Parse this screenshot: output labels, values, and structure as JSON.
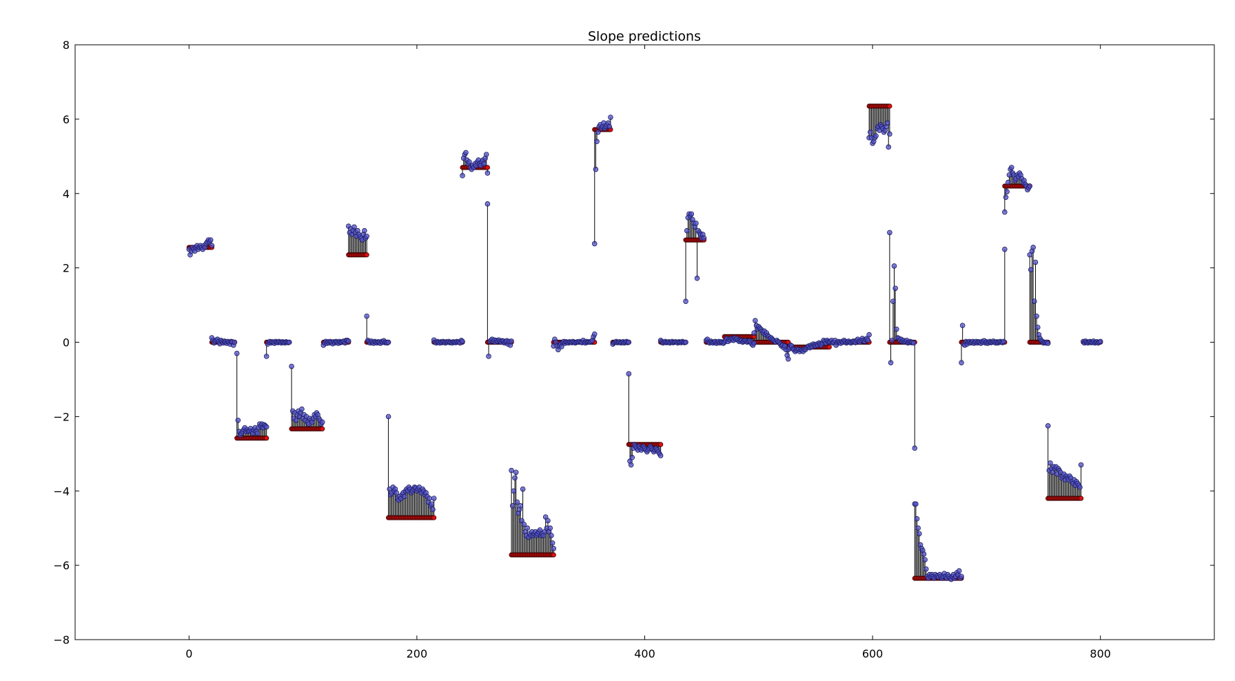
{
  "chart_data": {
    "type": "scatter",
    "title": "Slope predictions",
    "xlabel": "",
    "ylabel": "",
    "xlim": [
      -100,
      900
    ],
    "ylim": [
      -8,
      8
    ],
    "grid": false,
    "x_ticks": [
      0,
      200,
      400,
      600,
      800
    ],
    "x_tick_labels": [
      "0",
      "200",
      "400",
      "600",
      "800"
    ],
    "y_ticks": [
      8,
      6,
      4,
      2,
      0,
      -2,
      -4,
      -6,
      -8
    ],
    "y_tick_labels": [
      "8",
      "6",
      "4",
      "2",
      "0",
      "−2",
      "−4",
      "−6",
      "−8"
    ],
    "colors": {
      "true_value_marker": "#e01010",
      "prediction_marker": "#5050c8",
      "prediction_edge": "#1a1a5a",
      "residual_line": "#000000"
    },
    "segments": [
      {
        "x_start": 0,
        "x_end": 20,
        "true": 2.55,
        "pred": [
          2.5,
          2.35,
          2.45,
          2.55,
          2.5,
          2.45,
          2.55,
          2.6,
          2.5,
          2.55,
          2.6,
          2.55,
          2.5,
          2.6,
          2.55,
          2.65,
          2.7,
          2.75,
          2.7,
          2.75,
          2.6
        ]
      },
      {
        "x_start": 20,
        "x_end": 40,
        "true": 0.0,
        "pred": [
          0.12,
          0.05,
          -0.02,
          0.03,
          0.06,
          0.08,
          0.02,
          -0.04,
          0.05,
          0.02,
          -0.02,
          0.03,
          0.01,
          -0.03,
          0.02,
          0.0,
          -0.05,
          0.02,
          0.01,
          -0.08,
          0.0
        ]
      },
      {
        "x_start": 42,
        "x_end": 68,
        "true": -2.58,
        "pred": [
          -0.3,
          -2.1,
          -2.4,
          -2.5,
          -2.45,
          -2.4,
          -2.35,
          -2.3,
          -2.4,
          -2.35,
          -2.4,
          -2.38,
          -2.32,
          -2.4,
          -2.45,
          -2.36,
          -2.3,
          -2.4,
          -2.45,
          -2.3,
          -2.2,
          -2.25,
          -2.2,
          -2.3,
          -2.22,
          -2.25,
          -2.28
        ]
      },
      {
        "x_start": 68,
        "x_end": 88,
        "true": 0.0,
        "pred": [
          -0.38,
          -0.05,
          0.0,
          0.02,
          -0.02,
          0.01,
          0.0,
          -0.03,
          0.02,
          0.0,
          -0.01,
          0.02,
          0.0,
          -0.02,
          0.01,
          0.0,
          -0.02,
          0.01,
          0.0,
          -0.01,
          0.0
        ]
      },
      {
        "x_start": 90,
        "x_end": 117,
        "true": -2.33,
        "pred": [
          -0.65,
          -1.85,
          -2.05,
          -1.9,
          -2.1,
          -1.95,
          -1.85,
          -2.0,
          -1.9,
          -1.8,
          -2.05,
          -1.95,
          -2.1,
          -2.0,
          -2.15,
          -2.2,
          -2.05,
          -2.1,
          -2.15,
          -2.05,
          -1.95,
          -2.0,
          -1.9,
          -1.95,
          -2.05,
          -2.1,
          -2.2,
          -2.15
        ]
      },
      {
        "x_start": 118,
        "x_end": 140,
        "true": 0.0,
        "pred": [
          -0.08,
          -0.02,
          0.02,
          -0.03,
          0.01,
          -0.02,
          0.02,
          0.0,
          -0.04,
          0.01,
          -0.02,
          0.02,
          0.0,
          -0.03,
          0.02,
          -0.01,
          0.0,
          0.02,
          0.03,
          -0.02,
          0.05,
          0.05,
          0.03
        ]
      },
      {
        "x_start": 140,
        "x_end": 156,
        "true": 2.35,
        "pred": [
          3.12,
          2.95,
          3.05,
          2.9,
          3.0,
          3.1,
          2.95,
          2.85,
          3.0,
          2.9,
          2.85,
          2.8,
          2.75,
          2.9,
          3.0,
          2.8,
          2.85
        ]
      },
      {
        "x_start": 156,
        "x_end": 175,
        "true": 0.0,
        "pred": [
          0.7,
          0.05,
          0.02,
          -0.02,
          0.03,
          0.0,
          -0.03,
          0.02,
          0.0,
          -0.02,
          0.01,
          0.0,
          -0.03,
          0.02,
          0.0,
          0.04,
          -0.01,
          0.0,
          -0.02,
          0.0
        ]
      },
      {
        "x_start": 175,
        "x_end": 215,
        "true": -4.72,
        "pred": [
          -2.0,
          -3.95,
          -4.1,
          -4.05,
          -3.9,
          -4.0,
          -3.95,
          -4.05,
          -4.2,
          -4.25,
          -4.15,
          -4.2,
          -4.1,
          -4.05,
          -4.15,
          -4.0,
          -3.95,
          -4.0,
          -3.9,
          -3.95,
          -4.05,
          -4.0,
          -3.95,
          -3.9,
          -3.92,
          -4.0,
          -3.95,
          -3.9,
          -4.0,
          -4.05,
          -3.95,
          -4.0,
          -4.1,
          -4.05,
          -4.15,
          -4.3,
          -4.2,
          -4.4,
          -4.35,
          -4.5,
          -4.2
        ]
      },
      {
        "x_start": 215,
        "x_end": 240,
        "true": 0.0,
        "pred": [
          0.06,
          0.0,
          -0.02,
          0.02,
          0.0,
          -0.02,
          0.01,
          -0.01,
          0.02,
          0.0,
          -0.02,
          0.01,
          0.0,
          0.02,
          -0.01,
          0.0,
          -0.02,
          0.01,
          0.0,
          -0.01,
          0.02,
          0.0,
          0.01,
          -0.02,
          0.05,
          0.02
        ]
      },
      {
        "x_start": 240,
        "x_end": 262,
        "true": 4.7,
        "pred": [
          4.48,
          4.95,
          5.05,
          5.1,
          4.9,
          4.8,
          4.85,
          4.7,
          4.65,
          4.75,
          4.7,
          4.8,
          4.75,
          4.85,
          4.9,
          4.8,
          4.75,
          4.85,
          4.9,
          4.8,
          4.95,
          5.05,
          4.55
        ]
      },
      {
        "x_start": 262,
        "x_end": 283,
        "true": 0.0,
        "pred": [
          3.72,
          -0.38,
          0.02,
          0.05,
          0.08,
          0.02,
          0.06,
          0.0,
          0.05,
          0.02,
          0.06,
          0.02,
          0.0,
          0.04,
          0.03,
          -0.02,
          0.02,
          0.04,
          -0.05,
          0.02,
          -0.08,
          0.03
        ]
      },
      {
        "x_start": 283,
        "x_end": 320,
        "true": -5.72,
        "pred": [
          -3.45,
          -4.4,
          -4.0,
          -3.65,
          -3.5,
          -4.3,
          -4.6,
          -4.5,
          -4.4,
          -4.8,
          -3.95,
          -4.9,
          -5.1,
          -5.2,
          -5.0,
          -5.25,
          -5.15,
          -5.2,
          -5.1,
          -5.2,
          -5.15,
          -5.1,
          -5.2,
          -5.15,
          -5.1,
          -5.05,
          -5.2,
          -5.15,
          -5.2,
          -5.1,
          -4.7,
          -5.0,
          -4.8,
          -5.1,
          -5.0,
          -5.2,
          -5.4,
          -5.55
        ]
      },
      {
        "x_start": 320,
        "x_end": 356,
        "true": 0.0,
        "pred": [
          -0.1,
          0.08,
          0.0,
          -0.1,
          -0.2,
          -0.1,
          -0.05,
          -0.12,
          0.0,
          0.02,
          -0.03,
          0.01,
          0.0,
          -0.02,
          0.01,
          0.0,
          -0.01,
          0.02,
          0.0,
          -0.02,
          0.0,
          0.01,
          0.0,
          0.02,
          0.0,
          -0.01,
          0.05,
          0.0,
          -0.02,
          0.02,
          0.0,
          0.01,
          0.0,
          0.02,
          0.05,
          0.15,
          0.22
        ]
      },
      {
        "x_start": 356,
        "x_end": 370,
        "true": 5.72,
        "pred": [
          2.65,
          4.65,
          5.4,
          5.65,
          5.8,
          5.85,
          5.75,
          5.8,
          5.9,
          5.75,
          5.8,
          5.85,
          5.9,
          5.8,
          6.05
        ]
      },
      {
        "x_start": 372,
        "x_end": 386,
        "true": 0.0,
        "pred": [
          -0.05,
          -0.02,
          0.0,
          0.02,
          -0.01,
          0.0,
          0.01,
          -0.02,
          0.0,
          0.01,
          -0.02,
          0.0,
          0.02,
          -0.01,
          0.0
        ]
      },
      {
        "x_start": 386,
        "x_end": 414,
        "true": -2.75,
        "pred": [
          -0.85,
          -3.2,
          -3.3,
          -3.1,
          -2.85,
          -2.75,
          -2.8,
          -2.85,
          -2.9,
          -2.8,
          -2.85,
          -2.9,
          -2.85,
          -2.8,
          -2.85,
          -2.9,
          -2.95,
          -2.9,
          -2.85,
          -2.8,
          -2.85,
          -2.9,
          -2.95,
          -2.9,
          -2.85,
          -2.9,
          -2.95,
          -3.0,
          -3.05
        ]
      },
      {
        "x_start": 414,
        "x_end": 436,
        "true": 0.0,
        "pred": [
          0.05,
          0.02,
          -0.02,
          0.0,
          0.02,
          -0.01,
          0.0,
          0.01,
          -0.02,
          0.0,
          0.02,
          -0.01,
          0.0,
          0.01,
          0.0,
          -0.02,
          0.01,
          0.0,
          -0.01,
          0.02,
          0.0,
          -0.01,
          0.0
        ]
      },
      {
        "x_start": 436,
        "x_end": 452,
        "true": 2.75,
        "pred": [
          1.1,
          3.0,
          3.35,
          3.45,
          3.4,
          3.45,
          3.3,
          3.2,
          3.1,
          3.2,
          1.72,
          3.0,
          2.95,
          2.9,
          2.8,
          2.9,
          2.8
        ]
      },
      {
        "x_start": 454,
        "x_end": 470,
        "true": 0.0,
        "pred": [
          0.05,
          0.08,
          0.0,
          -0.02,
          0.03,
          0.0,
          -0.02,
          0.01,
          0.02,
          -0.03,
          0.0,
          0.02,
          -0.02,
          0.01,
          0.0,
          -0.03,
          0.02
        ]
      },
      {
        "x_start": 470,
        "x_end": 496,
        "true": 0.15,
        "pred": [
          0.0,
          0.05,
          0.1,
          0.02,
          0.08,
          0.05,
          0.1,
          0.08,
          0.05,
          0.12,
          0.08,
          0.1,
          0.05,
          0.02,
          0.06,
          0.04,
          0.0,
          0.02,
          0.05,
          0.03,
          0.0,
          0.02,
          0.04,
          0.0,
          -0.05,
          -0.08,
          -0.02
        ]
      },
      {
        "x_start": 496,
        "x_end": 526,
        "true": 0.0,
        "pred": [
          0.25,
          0.58,
          0.45,
          0.35,
          0.42,
          0.38,
          0.35,
          0.3,
          0.25,
          0.3,
          0.2,
          0.25,
          0.18,
          0.15,
          0.1,
          0.12,
          0.08,
          0.05,
          0.02,
          0.0,
          0.05,
          0.02,
          0.0,
          -0.05,
          -0.1,
          -0.08,
          -0.15,
          -0.1,
          -0.2,
          -0.35,
          -0.45
        ]
      },
      {
        "x_start": 526,
        "x_end": 562,
        "true": -0.13,
        "pred": [
          -0.2,
          -0.15,
          -0.08,
          -0.1,
          -0.18,
          -0.2,
          -0.25,
          -0.22,
          -0.18,
          -0.2,
          -0.25,
          -0.2,
          -0.22,
          -0.25,
          -0.18,
          -0.2,
          -0.15,
          -0.12,
          -0.1,
          -0.15,
          -0.08,
          -0.12,
          -0.05,
          -0.08,
          -0.1,
          -0.05,
          -0.08,
          -0.02,
          -0.05,
          -0.08,
          -0.02,
          0.05,
          0.02,
          -0.02,
          0.05,
          0.02,
          0.0
        ]
      },
      {
        "x_start": 562,
        "x_end": 597,
        "true": 0.0,
        "pred": [
          0.0,
          0.02,
          0.05,
          -0.02,
          0.0,
          0.05,
          -0.08,
          -0.02,
          0.02,
          0.0,
          -0.03,
          0.02,
          0.0,
          0.05,
          0.02,
          -0.02,
          0.01,
          0.03,
          0.0,
          -0.02,
          0.01,
          0.03,
          0.02,
          -0.01,
          0.05,
          0.08,
          0.02,
          0.0,
          0.05,
          0.1,
          0.05,
          0.02,
          0.08,
          0.1,
          0.05,
          0.2
        ]
      },
      {
        "x_start": 597,
        "x_end": 615,
        "true": 6.35,
        "pred": [
          5.5,
          5.65,
          5.5,
          5.35,
          5.4,
          5.5,
          5.55,
          5.75,
          5.8,
          5.7,
          5.85,
          5.8,
          5.75,
          5.65,
          5.7,
          5.8,
          5.9,
          5.25,
          5.6
        ]
      },
      {
        "x_start": 615,
        "x_end": 637,
        "true": 0.0,
        "pred": [
          2.95,
          -0.55,
          0.05,
          1.1,
          2.05,
          1.45,
          0.35,
          0.12,
          0.1,
          0.05,
          0.08,
          0.02,
          0.05,
          0.0,
          0.02,
          0.05,
          -0.02,
          0.0,
          0.02,
          -0.01,
          0.0,
          -0.02,
          -2.85
        ]
      },
      {
        "x_start": 637,
        "x_end": 678,
        "true": -6.35,
        "pred": [
          -4.35,
          -4.35,
          -4.75,
          -5.0,
          -5.15,
          -5.45,
          -5.55,
          -5.6,
          -5.7,
          -5.85,
          -6.1,
          -6.3,
          -6.35,
          -6.25,
          -6.3,
          -6.25,
          -6.3,
          -6.35,
          -6.25,
          -6.3,
          -6.28,
          -6.32,
          -6.25,
          -6.3,
          -6.35,
          -6.3,
          -6.22,
          -6.3,
          -6.35,
          -6.25,
          -6.3,
          -6.35,
          -6.38,
          -6.3,
          -6.25,
          -6.35,
          -6.3,
          -6.2,
          -6.25,
          -6.15,
          -6.35,
          -6.3
        ]
      },
      {
        "x_start": 678,
        "x_end": 716,
        "true": 0.0,
        "pred": [
          -0.55,
          0.45,
          -0.05,
          -0.08,
          0.02,
          -0.05,
          0.0,
          0.02,
          -0.02,
          0.0,
          0.02,
          -0.03,
          0.0,
          0.02,
          -0.02,
          0.01,
          0.0,
          -0.03,
          0.02,
          0.0,
          0.04,
          -0.02,
          0.01,
          -0.03,
          0.0,
          0.02,
          -0.01,
          0.0,
          0.03,
          0.0,
          -0.02,
          0.01,
          -0.02,
          0.0,
          0.02,
          0.0,
          -0.01,
          0.02,
          2.5
        ]
      },
      {
        "x_start": 716,
        "x_end": 738,
        "true": 4.2,
        "pred": [
          3.5,
          3.9,
          4.05,
          4.3,
          4.5,
          4.65,
          4.7,
          4.55,
          4.5,
          4.35,
          4.4,
          4.5,
          4.45,
          4.55,
          4.5,
          4.4,
          4.3,
          4.35,
          4.25,
          4.2,
          4.1,
          4.15,
          4.2
        ]
      },
      {
        "x_start": 738,
        "x_end": 754,
        "true": 0.0,
        "pred": [
          2.35,
          1.95,
          2.45,
          2.55,
          1.1,
          2.15,
          0.7,
          0.4,
          0.2,
          0.1,
          0.05,
          0.02,
          -0.02,
          0.0,
          -0.02,
          0.0,
          -0.03
        ]
      },
      {
        "x_start": 754,
        "x_end": 783,
        "true": -4.2,
        "pred": [
          -2.25,
          -3.45,
          -3.25,
          -3.4,
          -3.5,
          -3.35,
          -3.4,
          -3.35,
          -3.55,
          -3.4,
          -3.45,
          -3.5,
          -3.65,
          -3.6,
          -3.55,
          -3.7,
          -3.6,
          -3.65,
          -3.7,
          -3.6,
          -3.65,
          -3.75,
          -3.8,
          -3.7,
          -3.85,
          -3.75,
          -3.8,
          -3.85,
          -3.9,
          -3.3
        ]
      },
      {
        "x_start": 785,
        "x_end": 800,
        "true": 0.0,
        "pred": [
          0.02,
          -0.02,
          0.03,
          0.0,
          -0.02,
          0.01,
          0.02,
          -0.01,
          0.0,
          0.03,
          -0.02,
          0.0,
          0.01,
          -0.02,
          0.0,
          0.02
        ]
      }
    ]
  }
}
